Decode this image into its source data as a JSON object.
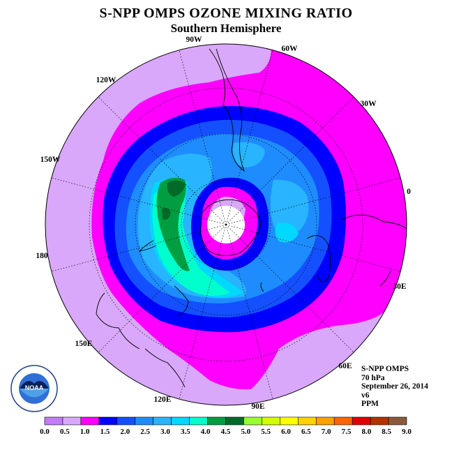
{
  "title": "S-NPP OMPS OZONE MIXING RATIO",
  "subtitle": "Southern Hemisphere",
  "longitude_labels": [
    "90W",
    "60W",
    "30W",
    "0",
    "30E",
    "60E",
    "90E",
    "120E",
    "150E",
    "180",
    "150W",
    "120W"
  ],
  "info": {
    "instrument": "S-NPP OMPS",
    "level": "70 hPa",
    "date": "September 26, 2014",
    "version": "v6",
    "units": "PPM"
  },
  "logo_text": "NOAA",
  "colorbar": {
    "ticks": [
      "0.0",
      "0.5",
      "1.0",
      "1.5",
      "2.0",
      "2.5",
      "3.0",
      "3.5",
      "4.0",
      "4.5",
      "5.0",
      "5.5",
      "6.0",
      "6.5",
      "7.0",
      "7.5",
      "8.0",
      "8.5",
      "9.0"
    ],
    "colors": [
      "#c47cf6",
      "#d9a8fb",
      "#ff00ff",
      "#0000ff",
      "#1450ff",
      "#1e8cff",
      "#28b4ff",
      "#00d8ff",
      "#00ffcc",
      "#009e40",
      "#006a28",
      "#9aff32",
      "#d2ff00",
      "#ffff00",
      "#ffd200",
      "#ffa000",
      "#ff6400",
      "#e10000",
      "#b43200",
      "#8b5a3c"
    ]
  },
  "map_data": {
    "projection": "polar stereographic, south pole centered",
    "field": "ozone mixing ratio",
    "units": "PPM",
    "range": [
      0.0,
      9.0
    ]
  }
}
